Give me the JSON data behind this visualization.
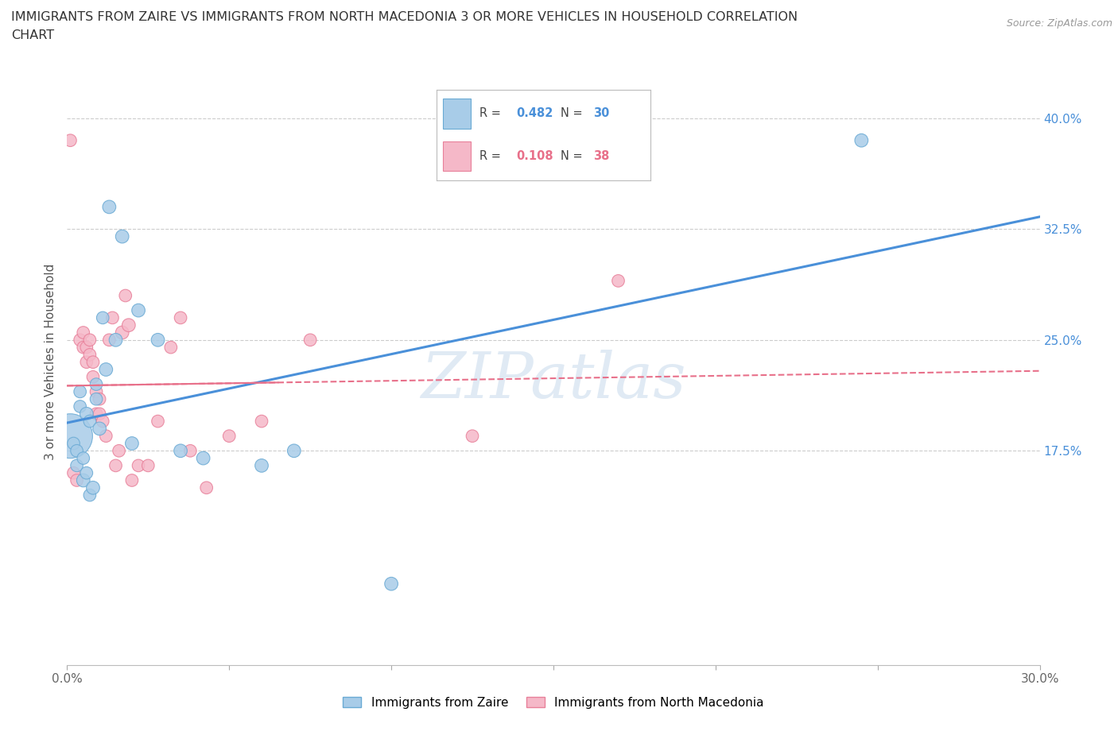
{
  "title_line1": "IMMIGRANTS FROM ZAIRE VS IMMIGRANTS FROM NORTH MACEDONIA 3 OR MORE VEHICLES IN HOUSEHOLD CORRELATION",
  "title_line2": "CHART",
  "source": "Source: ZipAtlas.com",
  "ylabel": "3 or more Vehicles in Household",
  "xlim": [
    0.0,
    0.3
  ],
  "ylim": [
    0.03,
    0.44
  ],
  "xticks": [
    0.0,
    0.05,
    0.1,
    0.15,
    0.2,
    0.25,
    0.3
  ],
  "xticklabels": [
    "0.0%",
    "",
    "",
    "",
    "",
    "",
    "30.0%"
  ],
  "ytick_positions": [
    0.175,
    0.25,
    0.325,
    0.4
  ],
  "ytick_labels": [
    "17.5%",
    "25.0%",
    "32.5%",
    "40.0%"
  ],
  "zaire_R": 0.482,
  "zaire_N": 30,
  "macedonia_R": 0.108,
  "macedonia_N": 38,
  "zaire_color": "#a8cce8",
  "macedonia_color": "#f5b8c8",
  "zaire_edge_color": "#6aaad4",
  "macedonia_edge_color": "#e8809a",
  "zaire_line_color": "#4a90d9",
  "macedonia_line_color": "#e8708a",
  "watermark": "ZIPatlas",
  "zaire_x": [
    0.001,
    0.002,
    0.003,
    0.003,
    0.004,
    0.004,
    0.005,
    0.005,
    0.006,
    0.006,
    0.007,
    0.007,
    0.008,
    0.009,
    0.009,
    0.01,
    0.011,
    0.012,
    0.013,
    0.015,
    0.017,
    0.02,
    0.022,
    0.028,
    0.035,
    0.042,
    0.06,
    0.07,
    0.1,
    0.245
  ],
  "zaire_y": [
    0.185,
    0.18,
    0.175,
    0.165,
    0.215,
    0.205,
    0.17,
    0.155,
    0.2,
    0.16,
    0.145,
    0.195,
    0.15,
    0.21,
    0.22,
    0.19,
    0.265,
    0.23,
    0.34,
    0.25,
    0.32,
    0.18,
    0.27,
    0.25,
    0.175,
    0.17,
    0.165,
    0.175,
    0.085,
    0.385
  ],
  "zaire_sizes": [
    80,
    70,
    70,
    70,
    70,
    70,
    70,
    80,
    80,
    70,
    70,
    70,
    80,
    70,
    70,
    80,
    70,
    80,
    80,
    80,
    80,
    80,
    80,
    80,
    80,
    80,
    80,
    80,
    80,
    80
  ],
  "zaire_big_idx": 0,
  "mac_x": [
    0.001,
    0.002,
    0.003,
    0.004,
    0.005,
    0.005,
    0.006,
    0.006,
    0.007,
    0.007,
    0.008,
    0.008,
    0.009,
    0.009,
    0.01,
    0.01,
    0.011,
    0.012,
    0.013,
    0.014,
    0.015,
    0.016,
    0.017,
    0.018,
    0.019,
    0.02,
    0.022,
    0.025,
    0.028,
    0.032,
    0.035,
    0.038,
    0.043,
    0.05,
    0.06,
    0.075,
    0.125,
    0.17
  ],
  "mac_y": [
    0.385,
    0.16,
    0.155,
    0.25,
    0.245,
    0.255,
    0.235,
    0.245,
    0.24,
    0.25,
    0.225,
    0.235,
    0.2,
    0.215,
    0.2,
    0.21,
    0.195,
    0.185,
    0.25,
    0.265,
    0.165,
    0.175,
    0.255,
    0.28,
    0.26,
    0.155,
    0.165,
    0.165,
    0.195,
    0.245,
    0.265,
    0.175,
    0.15,
    0.185,
    0.195,
    0.25,
    0.185,
    0.29
  ],
  "mac_sizes": [
    70,
    70,
    70,
    70,
    70,
    70,
    70,
    70,
    70,
    70,
    70,
    70,
    70,
    70,
    70,
    70,
    70,
    70,
    70,
    70,
    70,
    70,
    80,
    70,
    80,
    70,
    70,
    70,
    70,
    70,
    70,
    70,
    70,
    70,
    70,
    70,
    70,
    70
  ],
  "grid_color": "#cccccc",
  "bg_color": "#ffffff",
  "legend_R_blue": "#4a90d9",
  "legend_R_pink": "#e8708a",
  "legend_N_blue": "#4a90d9",
  "legend_N_pink": "#e8708a"
}
